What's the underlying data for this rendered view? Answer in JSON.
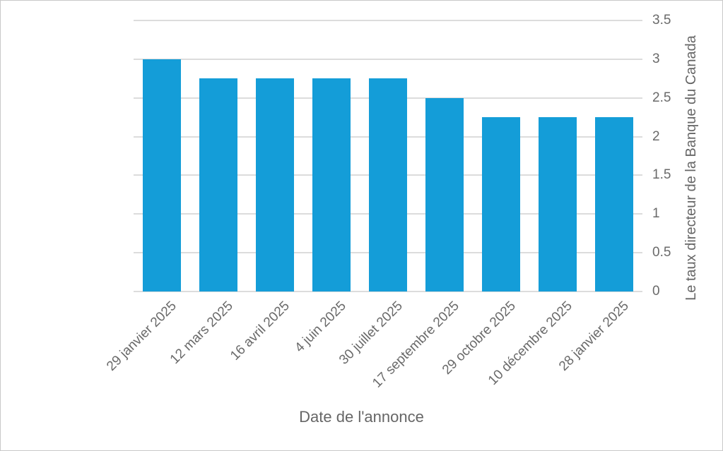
{
  "chart": {
    "background_color": "#ffffff",
    "border_color": "#c9c9c9",
    "bar_color": "#149dd8",
    "gridline_color": "#dcdcdc",
    "tick_label_color": "#6a6a6a",
    "axis_title_color": "#666666"
  },
  "chart_data": {
    "type": "bar",
    "categories": [
      "29 janvier 2025",
      "12 mars 2025",
      "16 avril 2025",
      "4 juin 2025",
      "30 juillet 2025",
      "17 septembre 2025",
      "29 octobre 2025",
      "10 décembre 2025",
      "28 janvier 2025"
    ],
    "values": [
      3,
      2.75,
      2.75,
      2.75,
      2.75,
      2.5,
      2.25,
      2.25,
      2.25
    ],
    "title": "",
    "xlabel": "Date de l'annonce",
    "ylabel": "Le taux directeur de la Banque du Canada",
    "ylim": [
      0,
      3.5
    ],
    "yticks": [
      0,
      0.5,
      1,
      1.5,
      2,
      2.5,
      3,
      3.5
    ],
    "ytick_labels": [
      "0",
      "0.5",
      "1",
      "1.5",
      "2",
      "2.5",
      "3",
      "3.5"
    ],
    "grid": true,
    "legend": "none",
    "y_axis_side": "right",
    "x_label_rotation_deg": -45
  }
}
